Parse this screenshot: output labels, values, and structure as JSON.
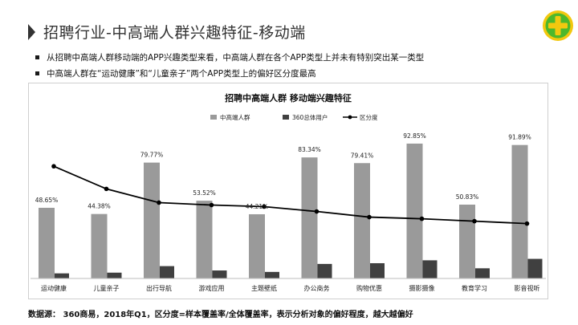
{
  "page": {
    "title": "招聘行业-中高端人群兴趣特征-移动端",
    "bullets": [
      "从招聘中高端人群移动端的APP兴趣类型来看，中高端人群在各个APP类型上并未有特别突出某一类型",
      "中高端人群在“运动健康”和“儿童亲子”两个APP类型上的偏好区分度最高"
    ],
    "footer": "数据源： 360商易，2018年Q1，区分度=样本覆盖率/全体覆盖率，表示分析对象的偏好程度，越大越偏好",
    "logo_icon": "360-plus-logo-icon"
  },
  "colors": {
    "series_primary": "#9a9a9a",
    "series_secondary": "#404040",
    "line": "#000000",
    "logo_green": "#4db82b",
    "logo_yellow": "#f2c80f"
  },
  "chart_data": {
    "type": "bar",
    "title": "招聘中高端人群 移动端兴趣特征",
    "categories": [
      "运动健康",
      "儿童亲子",
      "出行导航",
      "游戏应用",
      "主题壁纸",
      "办公商务",
      "购物优惠",
      "摄影摄像",
      "教育学习",
      "影音视听"
    ],
    "series": [
      {
        "name": "中高端人群",
        "kind": "bar",
        "values": [
          48.65,
          44.38,
          79.77,
          53.52,
          44.21,
          83.34,
          79.41,
          92.85,
          50.83,
          91.89
        ],
        "labels": [
          "48.65%",
          "44.38%",
          "79.77%",
          "53.52%",
          "44.21%",
          "83.34%",
          "79.41%",
          "92.85%",
          "50.83%",
          "91.89%"
        ]
      },
      {
        "name": "360总体用户",
        "kind": "bar",
        "values": [
          3.5,
          4.0,
          8.5,
          5.5,
          4.5,
          10.0,
          10.5,
          12.5,
          7.0,
          13.5
        ]
      },
      {
        "name": "区分度",
        "kind": "line",
        "values": [
          13.9,
          11.1,
          9.4,
          9.1,
          8.9,
          8.3,
          7.6,
          7.4,
          7.1,
          6.8
        ]
      }
    ],
    "ylim": [
      0,
      100
    ],
    "line_ylim": [
      0,
      18
    ],
    "legend_position": "top",
    "grid": false
  }
}
